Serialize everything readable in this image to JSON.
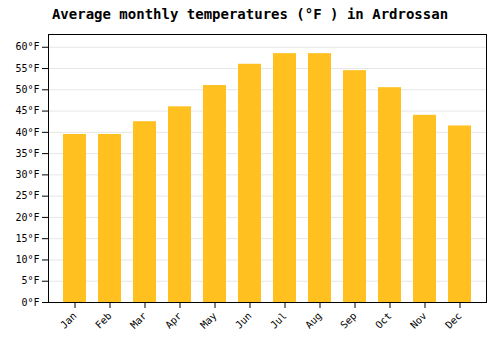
{
  "chart_data": {
    "type": "bar",
    "title": "Average monthly temperatures (°F ) in Ardrossan",
    "categories": [
      "Jan",
      "Feb",
      "Mar",
      "Apr",
      "May",
      "Jun",
      "Jul",
      "Aug",
      "Sep",
      "Oct",
      "Nov",
      "Dec"
    ],
    "values": [
      39.5,
      39.5,
      42.5,
      46.0,
      51.0,
      56.0,
      58.5,
      58.5,
      54.5,
      50.5,
      44.0,
      41.5
    ],
    "color": "#FFC020",
    "ylim": [
      0,
      63
    ],
    "yticks": [
      {
        "value": 0,
        "label": "0°F"
      },
      {
        "value": 5,
        "label": "5°F"
      },
      {
        "value": 10,
        "label": "10°F"
      },
      {
        "value": 15,
        "label": "15°F"
      },
      {
        "value": 20,
        "label": "20°F"
      },
      {
        "value": 25,
        "label": "25°F"
      },
      {
        "value": 30,
        "label": "30°F"
      },
      {
        "value": 35,
        "label": "35°F"
      },
      {
        "value": 40,
        "label": "40°F"
      },
      {
        "value": 45,
        "label": "45°F"
      },
      {
        "value": 50,
        "label": "50°F"
      },
      {
        "value": 55,
        "label": "55°F"
      },
      {
        "value": 60,
        "label": "60°F"
      }
    ],
    "grid": true
  }
}
